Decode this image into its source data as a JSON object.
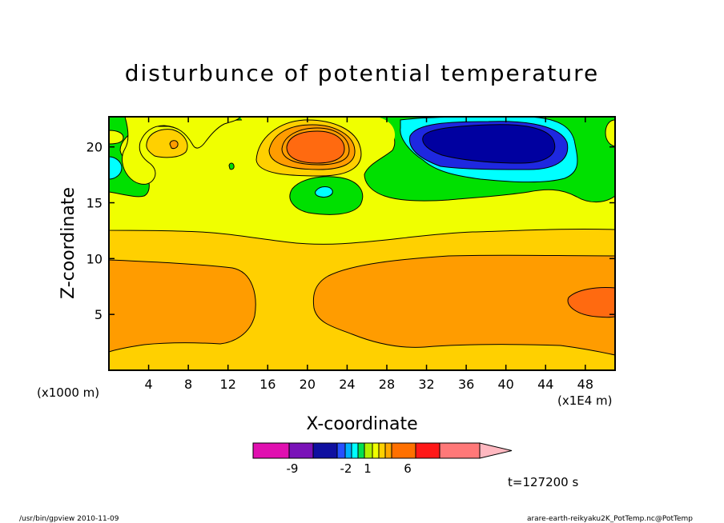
{
  "chart_data": {
    "type": "contour",
    "title": "disturbunce of potential temperature",
    "xlabel": "X-coordinate",
    "ylabel": "Z-coordinate",
    "x_unit_label": "(x1000 m)",
    "x_scale_label": "(x1E4 m)",
    "xlim": [
      0,
      51
    ],
    "ylim": [
      0,
      22.7
    ],
    "x_ticks": [
      4,
      8,
      12,
      16,
      20,
      24,
      28,
      32,
      36,
      40,
      44,
      48
    ],
    "y_ticks": [
      5,
      10,
      15,
      20
    ],
    "time_label": "t=127200 s",
    "colorbar": {
      "colors": [
        "#e010b0",
        "#7a12b8",
        "#1010a0",
        "#2650ff",
        "#00b0ff",
        "#00ffff",
        "#00e050",
        "#b0f000",
        "#f0ff00",
        "#ffd000",
        "#ffa800",
        "#ff7000",
        "#ff1818",
        "#ff7878",
        "#ffb8c0"
      ],
      "tick_labels": [
        "-9",
        "-2",
        "1",
        "6"
      ]
    },
    "level_colors": {
      "lt_-0.5": "#00ffff",
      "-0.5_0": "#00e000",
      "0_0.5": "#f0ff00",
      "0.5_1": "#ffd000",
      "1_1.5": "#ff9c00",
      "1.5_2": "#ff6a10",
      "deep_min": "#0000a0",
      "mid_min": "#1e28e0"
    }
  },
  "footer": {
    "left": "/usr/bin/gpview  2010-11-09",
    "right": "arare-earth-reikyaku2K_PotTemp.nc@PotTemp"
  }
}
